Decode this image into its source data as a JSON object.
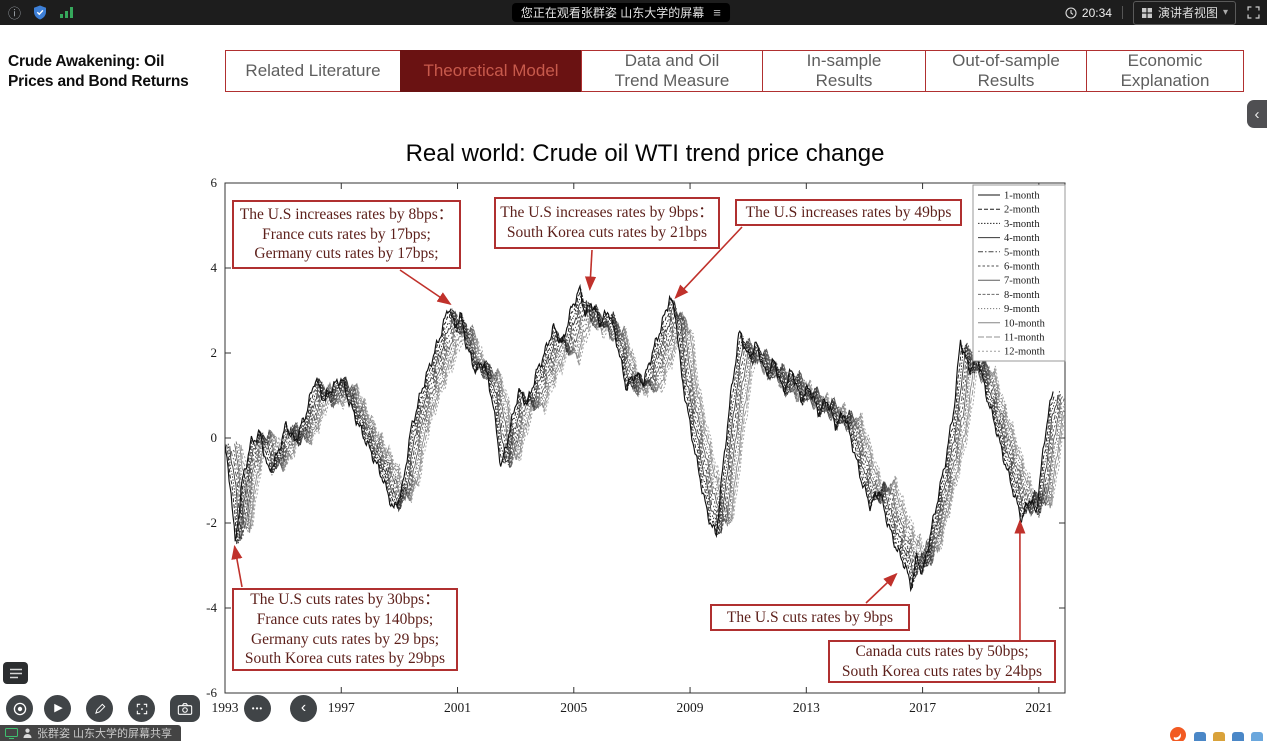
{
  "topbar": {
    "watching_label": "您正在观看张群姿 山东大学的屏幕",
    "time": "20:34",
    "view_mode_label": "演讲者视图"
  },
  "icons": {
    "menu_glyph": "≡",
    "caret_down": "▾",
    "play": "▶",
    "ellipsis": "•••",
    "back_chevron": "‹",
    "panel_chevron": "‹",
    "info_circle": "ⓘ"
  },
  "deck": {
    "title_lines": [
      "Crude Awakening: Oil",
      "Prices and  Bond Returns"
    ]
  },
  "tabs": [
    {
      "lines": [
        "Related Literature"
      ],
      "selected": false
    },
    {
      "lines": [
        "Theoretical Model"
      ],
      "selected": true
    },
    {
      "lines": [
        "Data and Oil",
        "Trend Measure"
      ],
      "selected": false
    },
    {
      "lines": [
        "In-sample",
        "Results"
      ],
      "selected": false
    },
    {
      "lines": [
        "Out-of-sample",
        "Results"
      ],
      "selected": false
    },
    {
      "lines": [
        "Economic",
        "Explanation"
      ],
      "selected": false
    }
  ],
  "chart_data": {
    "type": "line",
    "title": "Real world: Crude oil WTI trend price change",
    "xlabel": "",
    "ylabel": "",
    "xlim": [
      1993,
      2021.9
    ],
    "ylim": [
      -6,
      6
    ],
    "x_ticks": [
      1993,
      1997,
      2001,
      2005,
      2009,
      2013,
      2017,
      2021
    ],
    "y_ticks": [
      6,
      4,
      2,
      0,
      -2,
      -4,
      -6
    ],
    "grid": false,
    "legend_position": "top-right",
    "legend": [
      "1-month",
      "2-month",
      "3-month",
      "4-month",
      "5-month",
      "6-month",
      "7-month",
      "8-month",
      "9-month",
      "10-month",
      "11-month",
      "12-month"
    ],
    "series_note": "12 closely overlapping moving-trend series (1-month to 12-month); base 1-month series below, longer horizons are lagged/attenuated variants of it",
    "base_series": {
      "x": [
        1993.0,
        1993.2,
        1993.35,
        1993.6,
        1993.9,
        1994.2,
        1994.5,
        1994.8,
        1995.1,
        1995.4,
        1995.8,
        1996.1,
        1996.4,
        1996.7,
        1997.0,
        1997.3,
        1997.6,
        1998.0,
        1998.4,
        1998.8,
        1999.1,
        1999.4,
        1999.8,
        2000.1,
        2000.4,
        2000.7,
        2000.9,
        2001.1,
        2001.3,
        2001.6,
        2001.9,
        2002.2,
        2002.5,
        2002.8,
        2003.1,
        2003.4,
        2003.7,
        2004.0,
        2004.3,
        2004.6,
        2004.9,
        2005.2,
        2005.4,
        2005.6,
        2005.9,
        2006.2,
        2006.5,
        2006.8,
        2007.1,
        2007.4,
        2007.7,
        2008.0,
        2008.3,
        2008.5,
        2008.7,
        2009.0,
        2009.3,
        2009.6,
        2009.9,
        2010.1,
        2010.4,
        2010.7,
        2011.0,
        2011.3,
        2011.6,
        2011.9,
        2012.2,
        2012.5,
        2012.8,
        2013.1,
        2013.4,
        2013.7,
        2014.0,
        2014.3,
        2014.6,
        2014.9,
        2015.2,
        2015.5,
        2015.8,
        2016.1,
        2016.4,
        2016.6,
        2016.8,
        2017.0,
        2017.2,
        2017.5,
        2017.8,
        2018.1,
        2018.3,
        2018.6,
        2018.9,
        2019.2,
        2019.5,
        2019.8,
        2020.1,
        2020.4,
        2020.7,
        2020.9,
        2021.1,
        2021.3,
        2021.5
      ],
      "y": [
        -0.2,
        -1.2,
        -2.5,
        -1.0,
        -0.1,
        0.1,
        -0.8,
        -0.4,
        0.3,
        -0.1,
        0.6,
        1.4,
        0.9,
        1.2,
        1.4,
        0.8,
        0.3,
        -0.3,
        -0.9,
        -1.7,
        -1.2,
        0.2,
        1.2,
        1.8,
        2.4,
        3.1,
        2.6,
        2.9,
        2.2,
        1.6,
        1.8,
        0.9,
        -0.7,
        0.2,
        1.1,
        0.8,
        1.5,
        2.0,
        2.6,
        2.2,
        3.0,
        3.5,
        2.9,
        3.2,
        2.7,
        3.0,
        2.2,
        1.2,
        1.5,
        1.3,
        2.0,
        2.6,
        3.3,
        2.9,
        1.5,
        0.3,
        -0.8,
        -1.8,
        -2.3,
        -0.9,
        1.0,
        2.5,
        1.9,
        2.2,
        1.5,
        1.8,
        1.1,
        1.6,
        0.9,
        1.2,
        0.6,
        0.9,
        0.3,
        0.6,
        -0.2,
        -1.0,
        -1.6,
        -1.2,
        -2.0,
        -2.6,
        -3.0,
        -3.5,
        -2.8,
        -3.2,
        -2.5,
        -1.5,
        -0.5,
        0.8,
        2.3,
        1.6,
        1.9,
        1.0,
        0.3,
        -0.5,
        -1.2,
        -1.9,
        -1.4,
        -1.8,
        -0.6,
        0.5,
        1.1
      ]
    },
    "annotations": [
      {
        "lines": [
          "The U.S increases rates by 8bps：",
          "France cuts rates by 17bps;",
          "Germany cuts rates by 17bps;"
        ],
        "target_year": 2000.75,
        "target_value": 3.15
      },
      {
        "lines": [
          "The U.S increases rates by 9bps：",
          "South Korea cuts rates by 21bps"
        ],
        "target_year": 2005.55,
        "target_value": 3.5
      },
      {
        "lines": [
          "The U.S increases rates by 49bps"
        ],
        "target_year": 2008.5,
        "target_value": 3.3
      },
      {
        "lines": [
          "The U.S cuts rates by 30bps：",
          "France cuts rates by 140bps;",
          "Germany cuts rates by 29 bps;",
          "South Korea cuts rates by 29bps"
        ],
        "target_year": 1993.33,
        "target_value": -2.55
      },
      {
        "lines": [
          "The U.S cuts rates by 9bps"
        ],
        "target_year": 2016.1,
        "target_value": -3.2
      },
      {
        "lines": [
          "Canada cuts rates by 50bps;",
          "South Korea cuts rates by 24bps"
        ],
        "target_year": 2020.35,
        "target_value": -1.95
      }
    ],
    "colors": {
      "annotation_border": "#b03030",
      "annotation_text": "#5c1f1a",
      "arrow": "#c0312b",
      "axis": "#333333"
    }
  },
  "share_label": "张群姿 山东大学的屏幕共享"
}
